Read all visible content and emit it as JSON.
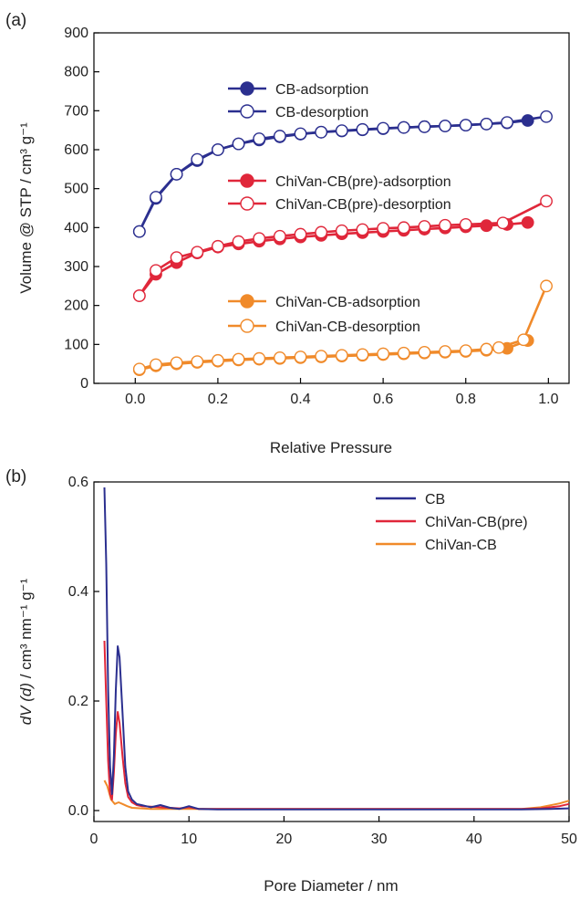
{
  "chart_data": [
    {
      "panel_label": "(a)",
      "type": "line",
      "xlabel": "Relative Pressure",
      "ylabel": "Volume @ STP / cm³ g⁻¹",
      "xlim": [
        -0.1,
        1.05
      ],
      "ylim": [
        0,
        900
      ],
      "x_ticks": [
        "0.0",
        "0.2",
        "0.4",
        "0.6",
        "0.8",
        "1.0"
      ],
      "y_ticks": [
        "0",
        "100",
        "200",
        "300",
        "400",
        "500",
        "600",
        "700",
        "800",
        "900"
      ],
      "grid": false,
      "legend_position": "upper-center",
      "series": [
        {
          "name": "CB-adsorption",
          "color": "#2b2f8f",
          "marker": "filled-circle",
          "x": [
            0.01,
            0.05,
            0.1,
            0.15,
            0.2,
            0.25,
            0.3,
            0.35,
            0.4,
            0.45,
            0.5,
            0.55,
            0.6,
            0.65,
            0.7,
            0.75,
            0.8,
            0.85,
            0.9,
            0.95
          ],
          "y": [
            390,
            475,
            537,
            572,
            600,
            615,
            625,
            633,
            640,
            645,
            648,
            651,
            654,
            657,
            659,
            661,
            663,
            666,
            669,
            675
          ]
        },
        {
          "name": "CB-desorption",
          "color": "#2b2f8f",
          "marker": "open-circle",
          "x": [
            0.995,
            0.9,
            0.85,
            0.8,
            0.75,
            0.7,
            0.65,
            0.6,
            0.55,
            0.5,
            0.45,
            0.4,
            0.35,
            0.3,
            0.25,
            0.2,
            0.15,
            0.1,
            0.05,
            0.01
          ],
          "y": [
            685,
            670,
            666,
            663,
            661,
            659,
            657,
            655,
            652,
            649,
            645,
            641,
            635,
            628,
            615,
            600,
            575,
            537,
            478,
            390
          ]
        },
        {
          "name": "ChiVan-CB(pre)-adsorption",
          "color": "#e0273a",
          "marker": "filled-circle",
          "x": [
            0.01,
            0.05,
            0.1,
            0.15,
            0.2,
            0.25,
            0.3,
            0.35,
            0.4,
            0.45,
            0.5,
            0.55,
            0.6,
            0.65,
            0.7,
            0.75,
            0.8,
            0.85,
            0.9,
            0.95
          ],
          "y": [
            225,
            280,
            310,
            335,
            350,
            358,
            365,
            371,
            376,
            380,
            384,
            387,
            390,
            393,
            396,
            399,
            402,
            405,
            408,
            413
          ]
        },
        {
          "name": "ChiVan-CB(pre)-desorption",
          "color": "#e0273a",
          "marker": "open-circle",
          "x": [
            0.995,
            0.89,
            0.8,
            0.75,
            0.7,
            0.65,
            0.6,
            0.55,
            0.5,
            0.45,
            0.4,
            0.35,
            0.3,
            0.25,
            0.2,
            0.15,
            0.1,
            0.05,
            0.01
          ],
          "y": [
            468,
            412,
            408,
            406,
            403,
            400,
            398,
            395,
            392,
            388,
            383,
            378,
            372,
            364,
            352,
            337,
            323,
            290,
            225
          ]
        },
        {
          "name": "ChiVan-CB-adsorption",
          "color": "#f08a2a",
          "marker": "filled-circle",
          "x": [
            0.01,
            0.05,
            0.1,
            0.15,
            0.2,
            0.25,
            0.3,
            0.35,
            0.4,
            0.45,
            0.5,
            0.55,
            0.6,
            0.65,
            0.7,
            0.75,
            0.8,
            0.85,
            0.9,
            0.95
          ],
          "y": [
            35,
            45,
            50,
            54,
            57,
            60,
            62,
            64,
            66,
            68,
            70,
            72,
            74,
            76,
            78,
            80,
            82,
            85,
            90,
            110
          ]
        },
        {
          "name": "ChiVan-CB-desorption",
          "color": "#f08a2a",
          "marker": "open-circle",
          "x": [
            0.995,
            0.94,
            0.88,
            0.85,
            0.8,
            0.75,
            0.7,
            0.65,
            0.6,
            0.55,
            0.5,
            0.45,
            0.4,
            0.35,
            0.3,
            0.25,
            0.2,
            0.15,
            0.1,
            0.05,
            0.01
          ],
          "y": [
            250,
            112,
            92,
            88,
            84,
            82,
            80,
            78,
            76,
            74,
            72,
            70,
            68,
            66,
            64,
            62,
            59,
            56,
            53,
            48,
            37
          ]
        }
      ]
    },
    {
      "panel_label": "(b)",
      "type": "line",
      "xlabel": "Pore Diameter / nm",
      "ylabel_italic": "dV (d)",
      "ylabel_rest": " / cm³ nm⁻¹ g⁻¹",
      "xlim": [
        0,
        50
      ],
      "ylim": [
        -0.02,
        0.6
      ],
      "x_ticks": [
        "0",
        "10",
        "20",
        "30",
        "40",
        "50"
      ],
      "y_ticks": [
        "0.0",
        "0.2",
        "0.4",
        "0.6"
      ],
      "grid": false,
      "legend_position": "top-right",
      "series": [
        {
          "name": "CB",
          "color": "#2b2f8f",
          "x": [
            1.1,
            1.3,
            1.5,
            1.7,
            1.9,
            2.1,
            2.3,
            2.5,
            2.7,
            3.0,
            3.3,
            3.6,
            4.0,
            4.5,
            5.0,
            5.5,
            6.0,
            7.0,
            8.0,
            9.0,
            10.0,
            11.0,
            13.0,
            16.0,
            20.0,
            25.0,
            30.0,
            35.0,
            40.0,
            45.0,
            48.0,
            50.0
          ],
          "y": [
            0.59,
            0.45,
            0.22,
            0.08,
            0.03,
            0.1,
            0.22,
            0.3,
            0.28,
            0.18,
            0.08,
            0.035,
            0.02,
            0.012,
            0.01,
            0.008,
            0.006,
            0.01,
            0.005,
            0.003,
            0.008,
            0.003,
            0.002,
            0.002,
            0.002,
            0.002,
            0.002,
            0.002,
            0.002,
            0.002,
            0.003,
            0.004
          ]
        },
        {
          "name": "ChiVan-CB(pre)",
          "color": "#e0273a",
          "x": [
            1.1,
            1.3,
            1.5,
            1.7,
            1.9,
            2.1,
            2.3,
            2.5,
            2.7,
            3.0,
            3.3,
            3.6,
            4.0,
            4.5,
            5.0,
            6.0,
            7.0,
            8.0,
            9.0,
            10.0,
            11.0,
            13.0,
            16.0,
            20.0,
            25.0,
            30.0,
            35.0,
            40.0,
            45.0,
            47.0,
            49.0,
            50.0
          ],
          "y": [
            0.31,
            0.2,
            0.09,
            0.03,
            0.02,
            0.07,
            0.14,
            0.18,
            0.16,
            0.1,
            0.05,
            0.025,
            0.015,
            0.01,
            0.008,
            0.007,
            0.006,
            0.005,
            0.004,
            0.006,
            0.003,
            0.003,
            0.003,
            0.003,
            0.003,
            0.003,
            0.003,
            0.003,
            0.003,
            0.004,
            0.008,
            0.012
          ]
        },
        {
          "name": "ChiVan-CB",
          "color": "#f08a2a",
          "x": [
            1.1,
            1.4,
            1.8,
            2.2,
            2.6,
            3.0,
            3.5,
            4.0,
            5.0,
            6.0,
            8.0,
            10.0,
            15.0,
            20.0,
            25.0,
            30.0,
            35.0,
            40.0,
            45.0,
            47.0,
            49.0,
            50.0
          ],
          "y": [
            0.055,
            0.045,
            0.02,
            0.012,
            0.015,
            0.012,
            0.008,
            0.005,
            0.004,
            0.003,
            0.003,
            0.003,
            0.003,
            0.003,
            0.003,
            0.003,
            0.003,
            0.003,
            0.003,
            0.006,
            0.013,
            0.018
          ]
        }
      ]
    }
  ]
}
